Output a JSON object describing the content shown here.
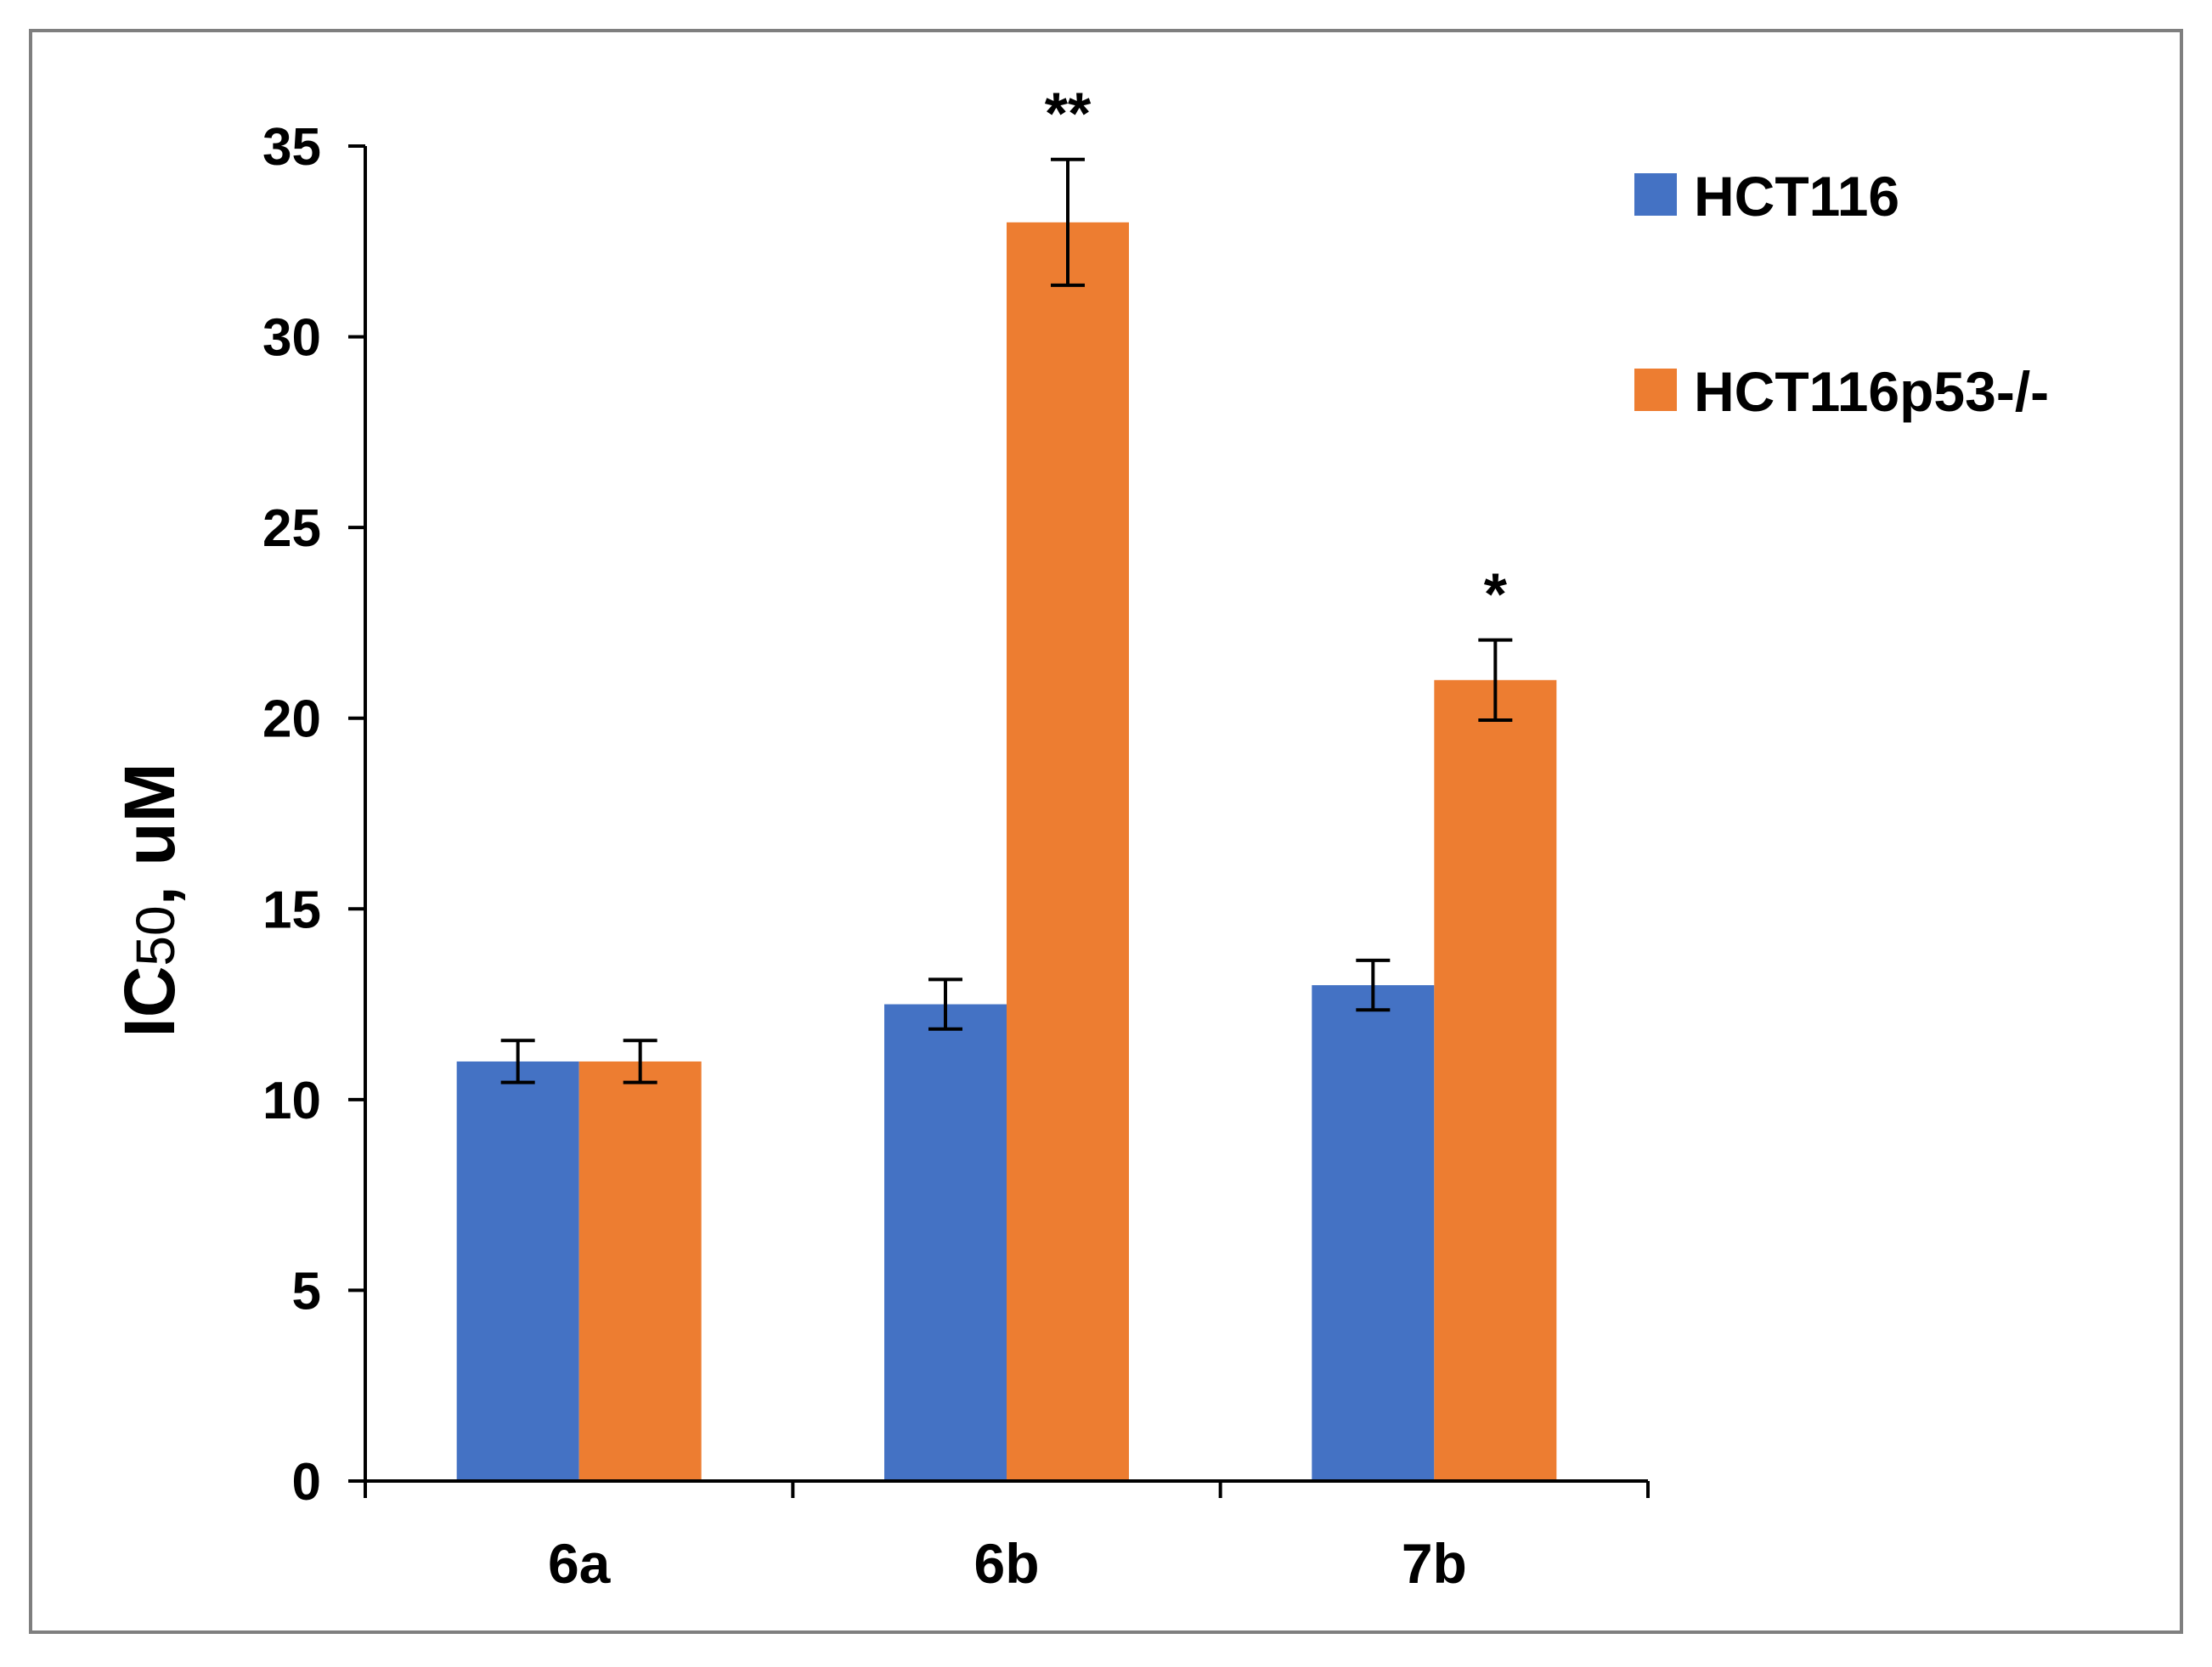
{
  "chart_data": {
    "type": "bar",
    "categories": [
      "6a",
      "6b",
      "7b"
    ],
    "series": [
      {
        "name": "HCT116",
        "values": [
          11.0,
          12.5,
          13.0
        ],
        "errors": [
          0.55,
          0.65,
          0.65
        ],
        "color": "#4472C4"
      },
      {
        "name": "HCT116p53-/-",
        "values": [
          11.0,
          33.0,
          21.0
        ],
        "errors": [
          0.55,
          1.65,
          1.05
        ],
        "color": "#ED7D31"
      }
    ],
    "significance": [
      "",
      "**",
      "*"
    ],
    "title": "",
    "xlabel": "",
    "ylabel": {
      "main": "IC",
      "sub": "50",
      "suffix": ", uM"
    },
    "ylim": [
      0,
      35
    ],
    "yticks": [
      "0",
      "5",
      "10",
      "15",
      "20",
      "25",
      "30",
      "35"
    ],
    "grid": false,
    "legend_position": "top-right",
    "colors": {
      "axis": "#000000",
      "frame": "#7F7F7F",
      "background": "#FFFFFF"
    }
  }
}
